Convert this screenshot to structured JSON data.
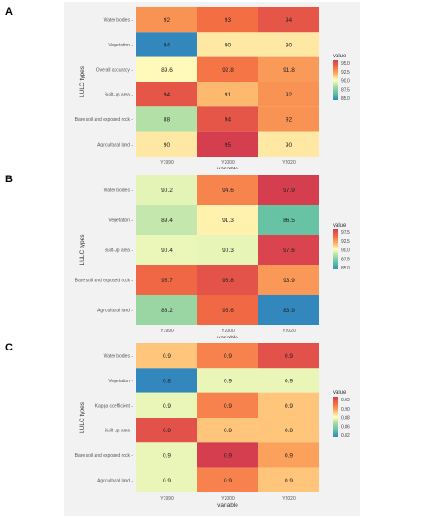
{
  "chart_data": [
    {
      "panel": "A",
      "type": "heatmap",
      "xlabel": "variable",
      "ylabel": "LULC types",
      "x": [
        "Y1990",
        "Y2000",
        "Y2020"
      ],
      "y": [
        "Water bodies",
        "Vegetation",
        "Overall accuracy",
        "Built-up area",
        "Bare soil and exposed rock",
        "Agricultural land"
      ],
      "values": [
        [
          92,
          93,
          94
        ],
        [
          84,
          90,
          90
        ],
        [
          89.6,
          92.8,
          91.8
        ],
        [
          94,
          91,
          92
        ],
        [
          88,
          94,
          92
        ],
        [
          90,
          95,
          90
        ]
      ],
      "labels": [
        [
          "92",
          "93",
          "94"
        ],
        [
          "84",
          "90",
          "90"
        ],
        [
          "89.6",
          "92.8",
          "91.8"
        ],
        [
          "94",
          "91",
          "92"
        ],
        [
          "88",
          "94",
          "92"
        ],
        [
          "90",
          "95",
          "90"
        ]
      ],
      "legend_title": "value",
      "legend_ticks": [
        "95.0",
        "92.5",
        "90.0",
        "87.5",
        "85.0"
      ],
      "range": [
        84,
        95
      ]
    },
    {
      "panel": "B",
      "type": "heatmap",
      "xlabel": "variable",
      "ylabel": "LULC types",
      "x": [
        "Y1990",
        "Y2000",
        "Y2020"
      ],
      "y": [
        "Water bodies",
        "Vegetation",
        "Built-up area",
        "Bare soil and exposed rock",
        "Agricultural land"
      ],
      "values": [
        [
          90.2,
          94.6,
          97.9
        ],
        [
          89.4,
          91.3,
          86.5
        ],
        [
          90.4,
          90.3,
          97.6
        ],
        [
          95.7,
          96.8,
          93.9
        ],
        [
          88.2,
          95.6,
          83.9
        ]
      ],
      "labels": [
        [
          "90.2",
          "94.6",
          "97.9"
        ],
        [
          "89.4",
          "91.3",
          "86.5"
        ],
        [
          "90.4",
          "90.3",
          "97.6"
        ],
        [
          "95.7",
          "96.8",
          "93.9"
        ],
        [
          "88.2",
          "95.6",
          "83.9"
        ]
      ],
      "legend_title": "value",
      "legend_ticks": [
        "97.5",
        "92.5",
        "90.0",
        "87.5",
        "85.0"
      ],
      "range": [
        83.9,
        97.9
      ]
    },
    {
      "panel": "C",
      "type": "heatmap",
      "xlabel": "variable",
      "ylabel": "LULC types",
      "x": [
        "Y1990",
        "Y2000",
        "Y2020"
      ],
      "y": [
        "Water bodies",
        "Vegetation",
        "Kappa coefficient",
        "Built-up area",
        "Bare soil and exposed rock",
        "Agricultural land"
      ],
      "values": [
        [
          0.88,
          0.9,
          0.92
        ],
        [
          0.8,
          0.86,
          0.86
        ],
        [
          0.86,
          0.9,
          0.88
        ],
        [
          0.92,
          0.88,
          0.88
        ],
        [
          0.86,
          0.93,
          0.89
        ],
        [
          0.86,
          0.9,
          0.88
        ]
      ],
      "labels": [
        [
          "0.9",
          "0.9",
          "0.9"
        ],
        [
          "0.8",
          "0.9",
          "0.9"
        ],
        [
          "0.9",
          "0.9",
          "0.9"
        ],
        [
          "0.9",
          "0.9",
          "0.9"
        ],
        [
          "0.9",
          "0.9",
          "0.9"
        ],
        [
          "0.9",
          "0.9",
          "0.9"
        ]
      ],
      "legend_title": "value",
      "legend_ticks": [
        "0.92",
        "0.90",
        "0.88",
        "0.86",
        "0.82"
      ],
      "range": [
        0.8,
        0.93
      ]
    }
  ]
}
